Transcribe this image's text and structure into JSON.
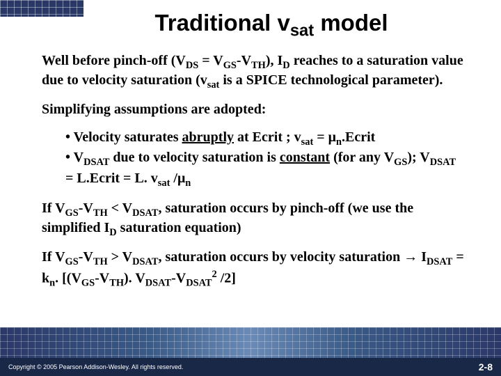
{
  "title_parts": {
    "pre": "Traditional v",
    "sub": "sat",
    "post": " model"
  },
  "p1_parts": {
    "t1": "Well before pinch-off (V",
    "s1": "DS",
    "t2": " = V",
    "s2": "GS",
    "t3": "-V",
    "s3": "TH",
    "t4": "), I",
    "s4": "D",
    "t5": " reaches to a saturation value due to velocity saturation (v",
    "s5": "sat",
    "t6": " is a SPICE technological parameter)."
  },
  "p2": "Simplifying assumptions are adopted:",
  "b1_parts": {
    "t1": "• Velocity saturates ",
    "u1": "abruptly",
    "t2": " at Ecrit ; v",
    "s1": "sat",
    "t3": " = μ",
    "s2": "n",
    "t4": ".Ecrit"
  },
  "b2_parts": {
    "t1": "• V",
    "s1": "DSAT",
    "t2": " due to velocity saturation is ",
    "u1": "constant",
    "t3": " (for any V",
    "s2": "GS",
    "t4": "); V",
    "s3": "DSAT",
    "t5": " = L.Ecrit = L. v",
    "s4": "sat",
    "t6": " /μ",
    "s5": "n"
  },
  "p3_parts": {
    "t1": " If V",
    "s1": "GS",
    "t2": "-V",
    "s2": "TH",
    "t3": " < V",
    "s3": "DSAT",
    "t4": ", saturation occurs by pinch-off (we use the simplified I",
    "s4": "D",
    "t5": " saturation equation)"
  },
  "p4_parts": {
    "t1": "If V",
    "s1": "GS",
    "t2": "-V",
    "s2": "TH",
    "t3": " > V",
    "s3": "DSAT",
    "t4": ", saturation occurs by velocity saturation ",
    "arrow": "→",
    "t5": " I",
    "s4": "DSAT",
    "t6": " = k",
    "s5": "n",
    "t7": ". [(V",
    "s6": "GS",
    "t8": "-V",
    "s7": "TH",
    "t9": "). V",
    "s8": "DSAT",
    "t10": "-V",
    "s9": "DSAT",
    "sup1": "2",
    "t11": " /2]"
  },
  "copyright": "Copyright © 2005 Pearson Addison-Wesley. All rights reserved.",
  "pagenum": "2-8"
}
